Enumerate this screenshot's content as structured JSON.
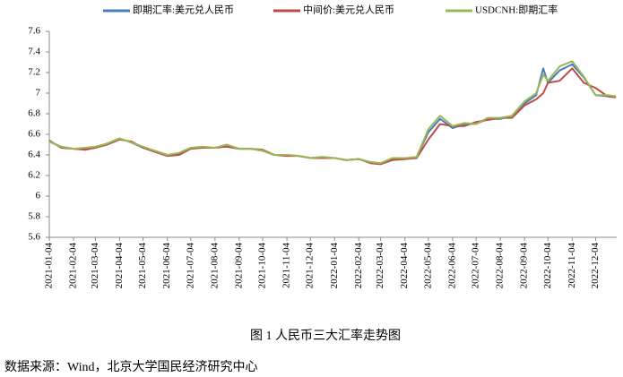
{
  "chart_data": {
    "type": "line",
    "legend": [
      "即期汇率:美元兑人民币",
      "中间价:美元兑人民币",
      "USDCNH:即期汇率"
    ],
    "caption": "图 1  人民币三大汇率走势图",
    "source": "数据来源：Wind，北京大学国民经济研究中心",
    "x": [
      "2021-01-04",
      "2021-01-19",
      "2021-02-04",
      "2021-02-19",
      "2021-03-04",
      "2021-03-19",
      "2021-04-04",
      "2021-04-19",
      "2021-05-04",
      "2021-05-19",
      "2021-06-04",
      "2021-06-19",
      "2021-07-04",
      "2021-07-19",
      "2021-08-04",
      "2021-08-19",
      "2021-09-04",
      "2021-09-19",
      "2021-10-04",
      "2021-10-19",
      "2021-11-04",
      "2021-11-19",
      "2021-12-04",
      "2021-12-19",
      "2022-01-04",
      "2022-01-19",
      "2022-02-04",
      "2022-02-19",
      "2022-03-04",
      "2022-03-19",
      "2022-04-04",
      "2022-04-19",
      "2022-05-04",
      "2022-05-19",
      "2022-06-04",
      "2022-06-19",
      "2022-07-04",
      "2022-07-19",
      "2022-08-04",
      "2022-08-19",
      "2022-09-04",
      "2022-09-19",
      "2022-09-28",
      "2022-10-04",
      "2022-10-19",
      "2022-11-04",
      "2022-11-19",
      "2022-12-04",
      "2022-12-19",
      "2022-12-30"
    ],
    "series": [
      {
        "name": "即期汇率:美元兑人民币",
        "color": "#4a7ebb",
        "values": [
          6.53,
          6.48,
          6.46,
          6.46,
          6.47,
          6.51,
          6.56,
          6.52,
          6.47,
          6.44,
          6.4,
          6.41,
          6.47,
          6.47,
          6.47,
          6.49,
          6.46,
          6.46,
          6.44,
          6.4,
          6.4,
          6.39,
          6.37,
          6.38,
          6.37,
          6.35,
          6.36,
          6.33,
          6.32,
          6.36,
          6.36,
          6.38,
          6.62,
          6.75,
          6.66,
          6.7,
          6.7,
          6.75,
          6.75,
          6.78,
          6.9,
          6.98,
          7.24,
          7.1,
          7.22,
          7.28,
          7.15,
          6.98,
          6.97,
          6.96
        ]
      },
      {
        "name": "中间价:美元兑人民币",
        "color": "#be4b48",
        "values": [
          6.54,
          6.47,
          6.46,
          6.45,
          6.47,
          6.5,
          6.55,
          6.53,
          6.47,
          6.43,
          6.39,
          6.4,
          6.46,
          6.47,
          6.47,
          6.48,
          6.46,
          6.46,
          6.45,
          6.4,
          6.39,
          6.39,
          6.37,
          6.37,
          6.37,
          6.35,
          6.36,
          6.32,
          6.31,
          6.35,
          6.36,
          6.37,
          6.55,
          6.7,
          6.68,
          6.68,
          6.72,
          6.74,
          6.76,
          6.76,
          6.88,
          6.94,
          7.0,
          7.1,
          7.12,
          7.24,
          7.1,
          7.05,
          6.97,
          6.96
        ]
      },
      {
        "name": "USDCNH:即期汇率",
        "color": "#98b954",
        "values": [
          6.53,
          6.48,
          6.46,
          6.47,
          6.48,
          6.51,
          6.56,
          6.52,
          6.48,
          6.44,
          6.4,
          6.42,
          6.47,
          6.48,
          6.47,
          6.5,
          6.46,
          6.46,
          6.44,
          6.4,
          6.4,
          6.39,
          6.37,
          6.38,
          6.37,
          6.35,
          6.36,
          6.33,
          6.32,
          6.37,
          6.37,
          6.38,
          6.65,
          6.78,
          6.68,
          6.71,
          6.7,
          6.76,
          6.76,
          6.78,
          6.92,
          7.0,
          7.18,
          7.12,
          7.26,
          7.31,
          7.16,
          6.98,
          6.98,
          6.97
        ]
      }
    ],
    "xlim": [
      "2021-01-04",
      "2022-12-31"
    ],
    "xticks": [
      "2021-01-04",
      "2021-02-04",
      "2021-03-04",
      "2021-04-04",
      "2021-05-04",
      "2021-06-04",
      "2021-07-04",
      "2021-08-04",
      "2021-09-04",
      "2021-10-04",
      "2021-11-04",
      "2021-12-04",
      "2022-01-04",
      "2022-02-04",
      "2022-03-04",
      "2022-04-04",
      "2022-05-04",
      "2022-06-04",
      "2022-07-04",
      "2022-08-04",
      "2022-09-04",
      "2022-10-04",
      "2022-11-04",
      "2022-12-04"
    ],
    "ylim": [
      5.6,
      7.6
    ],
    "yticks": [
      5.6,
      5.8,
      6,
      6.2,
      6.4,
      6.6,
      6.8,
      7,
      7.2,
      7.4,
      7.6
    ],
    "grid": false
  }
}
